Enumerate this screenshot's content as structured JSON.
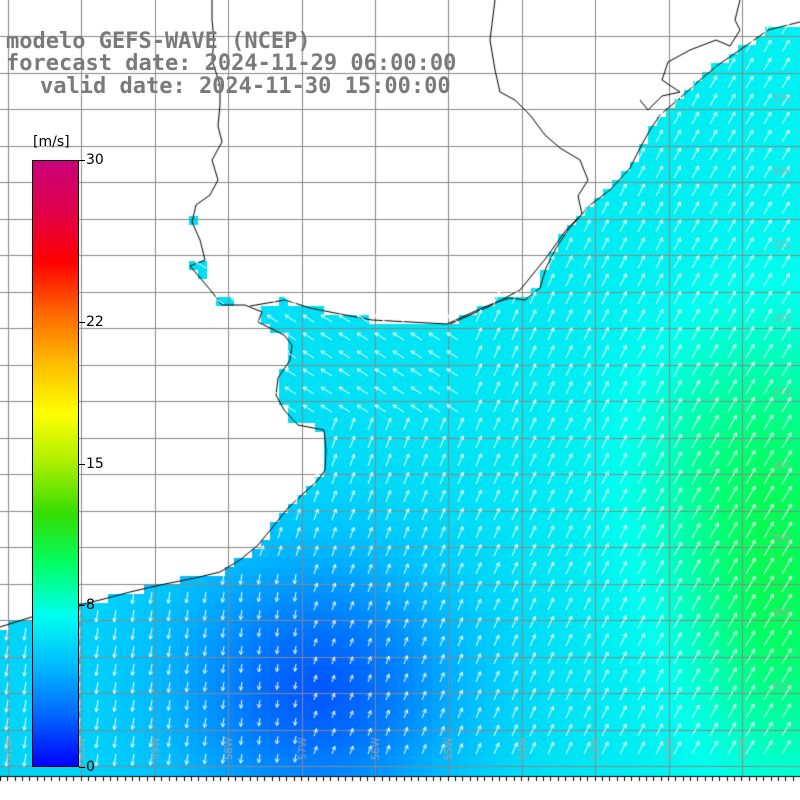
{
  "header": {
    "line1": "modelo GEFS-WAVE (NCEP)",
    "line2": "forecast date: 2024-11-29 06:00:00",
    "line3": "valid date: 2024-11-30 15:00:00"
  },
  "colorbar": {
    "unit": "[m/s]",
    "ticks": [
      {
        "value": 30,
        "label": "30"
      },
      {
        "value": 22,
        "label": "22"
      },
      {
        "value": 15,
        "label": "15"
      },
      {
        "value": 8,
        "label": "8"
      },
      {
        "value": 0,
        "label": "0"
      }
    ],
    "range": [
      0,
      30
    ],
    "colors": [
      "#0000ff",
      "#0066ff",
      "#00bbff",
      "#00ffee",
      "#00ff66",
      "#33dd00",
      "#aaee00",
      "#ffff00",
      "#ffbb00",
      "#ff6600",
      "#ff0000",
      "#e0004a",
      "#c8007a"
    ]
  },
  "map": {
    "land_color": "#ffffff",
    "coast_color": "#000000",
    "grid_color": "#888888",
    "arrow_color": "#ffffff",
    "background_color": "#ffffff",
    "grid_on": true,
    "lon_labels": [
      "61W",
      "60W",
      "59W",
      "58W",
      "57W",
      "56W",
      "55W",
      "54W",
      "53W",
      "52W",
      "51W"
    ],
    "lat_labels": [
      "33S",
      "34S",
      "35S",
      "36S",
      "37S",
      "38S",
      "39S",
      "40S",
      "41S"
    ]
  }
}
